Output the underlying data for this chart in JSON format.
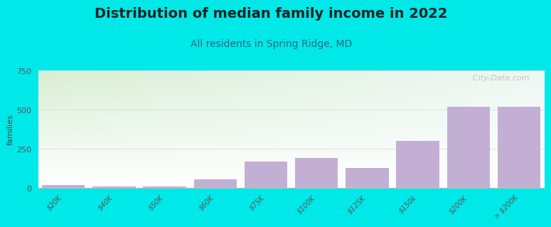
{
  "title": "Distribution of median family income in 2022",
  "subtitle": "All residents in Spring Ridge, MD",
  "ylabel": "families",
  "categories": [
    "$20K",
    "$40K",
    "$50K",
    "$60K",
    "$75K",
    "$100K",
    "$125K",
    "$150k",
    "$200K",
    "> $200K"
  ],
  "values": [
    18,
    12,
    8,
    55,
    170,
    190,
    130,
    300,
    520,
    520
  ],
  "bar_color": "#c4afd4",
  "background_color": "#00e8e8",
  "plot_bg_top_left": "#d8efd4",
  "plot_bg_top_right": "#eef8f4",
  "plot_bg_bottom": "#ffffff",
  "ylim": [
    0,
    750
  ],
  "yticks": [
    0,
    250,
    500,
    750
  ],
  "title_fontsize": 14,
  "subtitle_fontsize": 10,
  "ylabel_fontsize": 8,
  "watermark": "  City-Data.com"
}
